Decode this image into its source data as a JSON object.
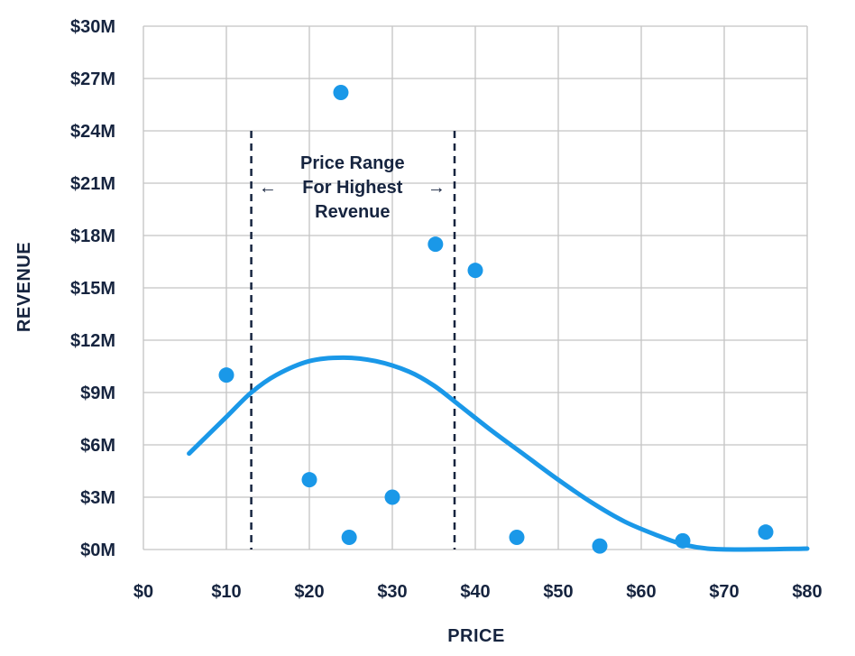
{
  "chart_data": {
    "type": "scatter",
    "xlabel": "PRICE",
    "ylabel": "REVENUE",
    "xlim": [
      0,
      80
    ],
    "ylim": [
      0,
      30
    ],
    "x_ticks": [
      0,
      10,
      20,
      30,
      40,
      50,
      60,
      70,
      80
    ],
    "x_tick_labels": [
      "$0",
      "$10",
      "$20",
      "$30",
      "$40",
      "$50",
      "$60",
      "$70",
      "$80"
    ],
    "y_ticks": [
      0,
      3,
      6,
      9,
      12,
      15,
      18,
      21,
      24,
      27,
      30
    ],
    "y_tick_labels": [
      "$0M",
      "$3M",
      "$6M",
      "$9M",
      "$12M",
      "$15M",
      "$18M",
      "$21M",
      "$24M",
      "$27M",
      "$30M"
    ],
    "grid": true,
    "points": [
      {
        "x": 10,
        "y": 10.0
      },
      {
        "x": 20,
        "y": 4.0
      },
      {
        "x": 23.8,
        "y": 26.2
      },
      {
        "x": 24.8,
        "y": 0.7
      },
      {
        "x": 30,
        "y": 3.0
      },
      {
        "x": 35.2,
        "y": 17.5
      },
      {
        "x": 40,
        "y": 16.0
      },
      {
        "x": 45,
        "y": 0.7
      },
      {
        "x": 55,
        "y": 0.2
      },
      {
        "x": 65,
        "y": 0.5
      },
      {
        "x": 75,
        "y": 1.0
      }
    ],
    "trend_curve": [
      {
        "x": 5.5,
        "y": 5.5
      },
      {
        "x": 10,
        "y": 7.6
      },
      {
        "x": 13,
        "y": 9.0
      },
      {
        "x": 16,
        "y": 10.0
      },
      {
        "x": 20,
        "y": 10.8
      },
      {
        "x": 24,
        "y": 11.0
      },
      {
        "x": 28,
        "y": 10.8
      },
      {
        "x": 32,
        "y": 10.2
      },
      {
        "x": 35,
        "y": 9.4
      },
      {
        "x": 38,
        "y": 8.3
      },
      {
        "x": 42,
        "y": 6.8
      },
      {
        "x": 46,
        "y": 5.4
      },
      {
        "x": 50,
        "y": 4.0
      },
      {
        "x": 54,
        "y": 2.7
      },
      {
        "x": 58,
        "y": 1.6
      },
      {
        "x": 62,
        "y": 0.8
      },
      {
        "x": 65,
        "y": 0.3
      },
      {
        "x": 68,
        "y": 0.05
      },
      {
        "x": 72,
        "y": 0.0
      },
      {
        "x": 80,
        "y": 0.05
      }
    ],
    "range_markers": [
      13,
      37.5
    ],
    "range_marker_top": 24,
    "annotation": {
      "lines": [
        "Price Range",
        "For Highest",
        "Revenue"
      ],
      "left_arrow": "←",
      "right_arrow": "→",
      "x": 25.2,
      "y": 20.8
    },
    "colors": {
      "points": "#1a98e8",
      "curve": "#1a98e8",
      "grid": "#c4c4c4",
      "text": "#16243f",
      "markers": "#16243f"
    }
  }
}
